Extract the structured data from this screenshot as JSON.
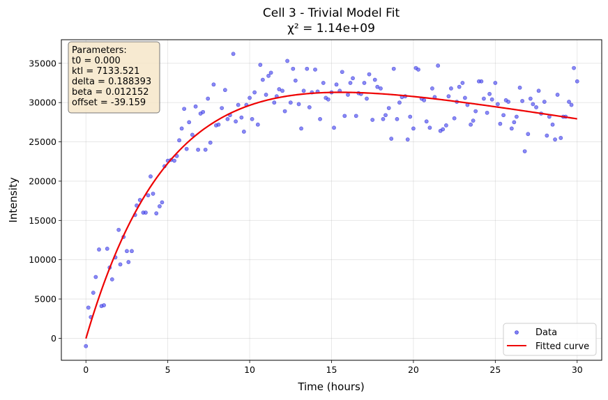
{
  "chart_data": {
    "type": "scatter",
    "title": "Cell 3 - Trivial Model Fit",
    "subtitle": "χ² = 1.14e+09",
    "xlabel": "Time (hours)",
    "ylabel": "Intensity",
    "xlim": [
      -1.5,
      31.5
    ],
    "ylim": [
      -2800,
      38000
    ],
    "x_ticks": [
      "0",
      "5",
      "10",
      "15",
      "20",
      "25",
      "30"
    ],
    "x_tick_values": [
      0,
      5,
      10,
      15,
      20,
      25,
      30
    ],
    "y_ticks": [
      "0",
      "5000",
      "10000",
      "15000",
      "20000",
      "25000",
      "30000",
      "35000"
    ],
    "y_tick_values": [
      0,
      5000,
      10000,
      15000,
      20000,
      25000,
      30000,
      35000
    ],
    "grid": true,
    "legend_position": "bottom-right",
    "parameters_box": {
      "lines": [
        "Parameters:",
        "t0 = 0.000",
        "ktl = 7133.521",
        "delta = 0.188393",
        "beta = 0.012152",
        "offset = -39.159"
      ]
    },
    "model": {
      "t0": 0.0,
      "ktl": 7133.521,
      "delta": 0.188393,
      "beta": 0.012152,
      "offset": -39.159
    },
    "series": [
      {
        "name": "Data",
        "type": "scatter",
        "color": "#4a4af0",
        "points": [
          [
            0.0,
            -1000
          ],
          [
            0.15,
            3900
          ],
          [
            0.3,
            2700
          ],
          [
            0.45,
            5800
          ],
          [
            0.6,
            7800
          ],
          [
            0.8,
            11300
          ],
          [
            0.95,
            4100
          ],
          [
            1.1,
            4200
          ],
          [
            1.3,
            11400
          ],
          [
            1.45,
            9000
          ],
          [
            1.6,
            7500
          ],
          [
            1.8,
            10300
          ],
          [
            2.0,
            13800
          ],
          [
            2.1,
            9400
          ],
          [
            2.3,
            12900
          ],
          [
            2.5,
            11100
          ],
          [
            2.6,
            9700
          ],
          [
            2.8,
            11100
          ],
          [
            3.0,
            15700
          ],
          [
            3.1,
            16900
          ],
          [
            3.3,
            17600
          ],
          [
            3.5,
            16000
          ],
          [
            3.65,
            16000
          ],
          [
            3.8,
            18200
          ],
          [
            3.95,
            20600
          ],
          [
            4.1,
            18400
          ],
          [
            4.3,
            15900
          ],
          [
            4.5,
            16800
          ],
          [
            4.65,
            17300
          ],
          [
            4.8,
            21900
          ],
          [
            5.0,
            22600
          ],
          [
            5.2,
            22700
          ],
          [
            5.4,
            22600
          ],
          [
            5.55,
            23200
          ],
          [
            5.7,
            25200
          ],
          [
            5.85,
            26700
          ],
          [
            6.0,
            29200
          ],
          [
            6.15,
            24100
          ],
          [
            6.3,
            27500
          ],
          [
            6.5,
            25900
          ],
          [
            6.7,
            29500
          ],
          [
            6.85,
            24000
          ],
          [
            7.0,
            28600
          ],
          [
            7.15,
            28800
          ],
          [
            7.3,
            24000
          ],
          [
            7.45,
            30500
          ],
          [
            7.6,
            24900
          ],
          [
            7.8,
            32300
          ],
          [
            7.95,
            27100
          ],
          [
            8.1,
            27200
          ],
          [
            8.3,
            29300
          ],
          [
            8.5,
            31600
          ],
          [
            8.65,
            27900
          ],
          [
            8.8,
            28400
          ],
          [
            9.0,
            36200
          ],
          [
            9.15,
            27600
          ],
          [
            9.3,
            29700
          ],
          [
            9.5,
            28100
          ],
          [
            9.65,
            26300
          ],
          [
            9.8,
            29700
          ],
          [
            10.0,
            30600
          ],
          [
            10.15,
            27900
          ],
          [
            10.3,
            31300
          ],
          [
            10.5,
            27200
          ],
          [
            10.65,
            34800
          ],
          [
            10.8,
            32900
          ],
          [
            11.0,
            31000
          ],
          [
            11.15,
            33400
          ],
          [
            11.3,
            33800
          ],
          [
            11.5,
            30000
          ],
          [
            11.65,
            30800
          ],
          [
            11.8,
            31700
          ],
          [
            12.0,
            31500
          ],
          [
            12.15,
            28900
          ],
          [
            12.3,
            35300
          ],
          [
            12.5,
            30000
          ],
          [
            12.65,
            34300
          ],
          [
            12.8,
            32800
          ],
          [
            13.0,
            29800
          ],
          [
            13.15,
            26700
          ],
          [
            13.3,
            31500
          ],
          [
            13.5,
            34300
          ],
          [
            13.65,
            29400
          ],
          [
            13.8,
            31300
          ],
          [
            14.0,
            34200
          ],
          [
            14.15,
            31400
          ],
          [
            14.3,
            27900
          ],
          [
            14.5,
            32500
          ],
          [
            14.65,
            30600
          ],
          [
            14.8,
            30400
          ],
          [
            15.0,
            31300
          ],
          [
            15.15,
            26800
          ],
          [
            15.3,
            32300
          ],
          [
            15.5,
            31500
          ],
          [
            15.65,
            33900
          ],
          [
            15.8,
            28300
          ],
          [
            16.0,
            31000
          ],
          [
            16.15,
            32500
          ],
          [
            16.3,
            33100
          ],
          [
            16.5,
            28300
          ],
          [
            16.65,
            31200
          ],
          [
            16.8,
            31100
          ],
          [
            17.0,
            32500
          ],
          [
            17.15,
            30500
          ],
          [
            17.3,
            33600
          ],
          [
            17.5,
            27800
          ],
          [
            17.65,
            32900
          ],
          [
            17.8,
            32000
          ],
          [
            18.0,
            31800
          ],
          [
            18.15,
            27900
          ],
          [
            18.3,
            28400
          ],
          [
            18.5,
            29300
          ],
          [
            18.65,
            25400
          ],
          [
            18.8,
            34300
          ],
          [
            19.0,
            27900
          ],
          [
            19.15,
            30000
          ],
          [
            19.3,
            30700
          ],
          [
            19.5,
            30800
          ],
          [
            19.65,
            25300
          ],
          [
            19.8,
            28200
          ],
          [
            20.0,
            26700
          ],
          [
            20.15,
            34400
          ],
          [
            20.3,
            34200
          ],
          [
            20.5,
            30500
          ],
          [
            20.65,
            30300
          ],
          [
            20.8,
            27600
          ],
          [
            21.0,
            26800
          ],
          [
            21.15,
            31800
          ],
          [
            21.3,
            30700
          ],
          [
            21.5,
            34700
          ],
          [
            21.65,
            26400
          ],
          [
            21.8,
            26600
          ],
          [
            22.0,
            27100
          ],
          [
            22.15,
            30800
          ],
          [
            22.3,
            31800
          ],
          [
            22.5,
            28000
          ],
          [
            22.65,
            30100
          ],
          [
            22.8,
            32000
          ],
          [
            23.0,
            32500
          ],
          [
            23.15,
            30600
          ],
          [
            23.3,
            29700
          ],
          [
            23.5,
            27200
          ],
          [
            23.65,
            27700
          ],
          [
            23.8,
            28900
          ],
          [
            24.0,
            32700
          ],
          [
            24.15,
            32700
          ],
          [
            24.3,
            30500
          ],
          [
            24.5,
            28700
          ],
          [
            24.65,
            31100
          ],
          [
            24.8,
            30400
          ],
          [
            25.0,
            32500
          ],
          [
            25.15,
            29800
          ],
          [
            25.3,
            27300
          ],
          [
            25.5,
            28400
          ],
          [
            25.65,
            30300
          ],
          [
            25.8,
            30100
          ],
          [
            26.0,
            26700
          ],
          [
            26.15,
            27500
          ],
          [
            26.3,
            28200
          ],
          [
            26.5,
            31900
          ],
          [
            26.65,
            30200
          ],
          [
            26.8,
            23800
          ],
          [
            27.0,
            26000
          ],
          [
            27.15,
            30500
          ],
          [
            27.3,
            29800
          ],
          [
            27.5,
            29400
          ],
          [
            27.65,
            31500
          ],
          [
            27.8,
            28600
          ],
          [
            28.0,
            30100
          ],
          [
            28.15,
            25800
          ],
          [
            28.3,
            28200
          ],
          [
            28.5,
            27200
          ],
          [
            28.65,
            25300
          ],
          [
            28.8,
            31000
          ],
          [
            29.0,
            25500
          ],
          [
            29.15,
            28200
          ],
          [
            29.3,
            28200
          ],
          [
            29.5,
            30100
          ],
          [
            29.65,
            29700
          ],
          [
            29.8,
            34400
          ],
          [
            30.0,
            32700
          ]
        ]
      },
      {
        "name": "Fitted curve",
        "type": "line",
        "color": "#ee0000"
      }
    ]
  }
}
